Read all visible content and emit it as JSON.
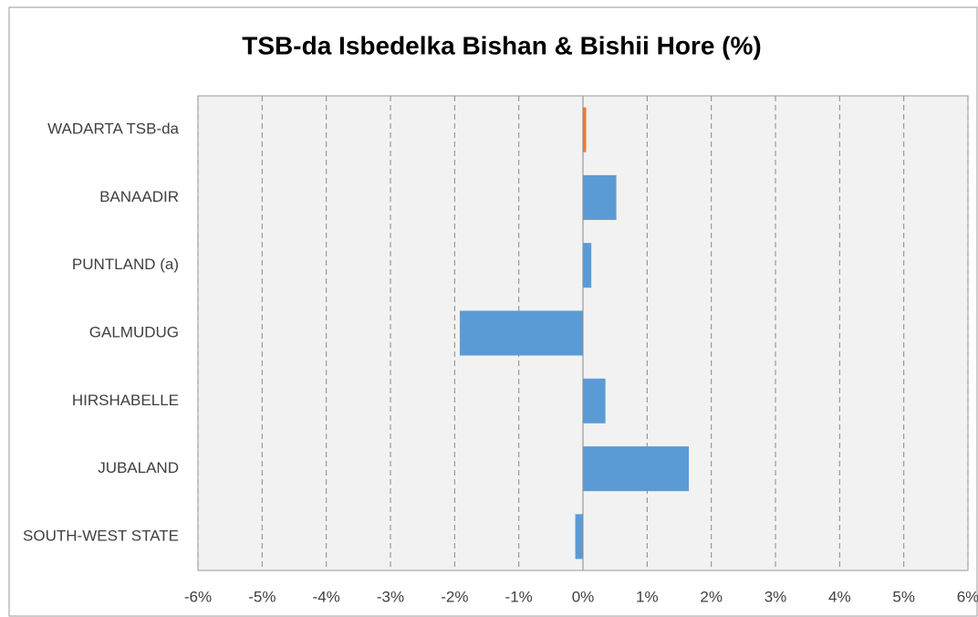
{
  "chart_data": {
    "type": "hbar",
    "title": "TSB-da Isbedelka Bishan & Bishii Hore (%)",
    "categories": [
      "WADARTA TSB-da",
      "BANAADIR",
      "PUNTLAND (a)",
      "GALMUDUG",
      "HIRSHABELLE",
      "JUBALAND",
      "SOUTH-WEST STATE"
    ],
    "values": [
      0.05,
      0.52,
      0.13,
      -1.92,
      0.35,
      1.65,
      -0.12
    ],
    "colors": [
      "#ed7d31",
      "#5b9bd5",
      "#5b9bd5",
      "#5b9bd5",
      "#5b9bd5",
      "#5b9bd5",
      "#5b9bd5"
    ],
    "xlim": [
      -6,
      6
    ],
    "xticks": [
      {
        "value": -6,
        "label": "-6%"
      },
      {
        "value": -5,
        "label": "-5%"
      },
      {
        "value": -4,
        "label": "-4%"
      },
      {
        "value": -3,
        "label": "-3%"
      },
      {
        "value": -2,
        "label": "-2%"
      },
      {
        "value": -1,
        "label": "-1%"
      },
      {
        "value": 0,
        "label": "0%"
      },
      {
        "value": 1,
        "label": "1%"
      },
      {
        "value": 2,
        "label": "2%"
      },
      {
        "value": 3,
        "label": "3%"
      },
      {
        "value": 4,
        "label": "4%"
      },
      {
        "value": 5,
        "label": "5%"
      },
      {
        "value": 6,
        "label": "6%"
      }
    ],
    "grid": true
  }
}
